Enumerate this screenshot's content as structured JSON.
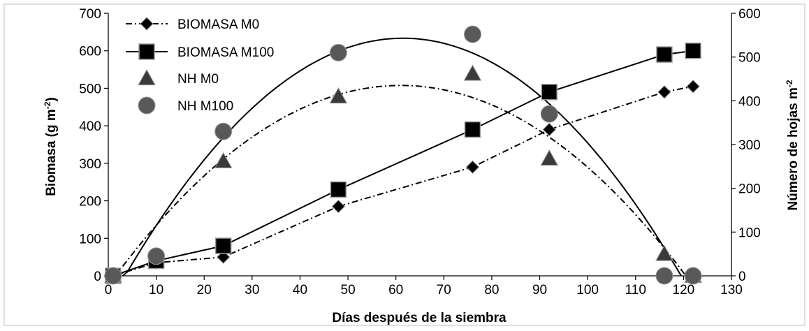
{
  "chart_data": {
    "type": "scatter",
    "xlabel": "Días después de la siembra",
    "ylabel": "Biomasa (g m",
    "ylabel_sup": "-2",
    "ylabel_end": ")",
    "y2label": "Número de hojas m",
    "y2label_sup": "-2",
    "xlim": [
      0,
      130
    ],
    "ylim": [
      0,
      700
    ],
    "y2lim": [
      0,
      600
    ],
    "xticks": [
      "0",
      "10",
      "20",
      "30",
      "40",
      "50",
      "60",
      "70",
      "80",
      "90",
      "100",
      "110",
      "120",
      "130"
    ],
    "yticks": [
      "0",
      "100",
      "200",
      "300",
      "400",
      "500",
      "600",
      "700"
    ],
    "y2ticks": [
      "0",
      "100",
      "200",
      "300",
      "400",
      "500",
      "600"
    ],
    "grid": false,
    "legend_position": "top-left",
    "series": [
      {
        "name": "BIOMASA M0",
        "axis": "left",
        "marker": "diamond",
        "line": "dash-dot",
        "color": "#000000",
        "x": [
          1,
          10,
          24,
          48,
          76,
          92,
          116,
          122
        ],
        "y": [
          0,
          35,
          50,
          185,
          290,
          390,
          490,
          505
        ]
      },
      {
        "name": "BIOMASA M100",
        "axis": "left",
        "marker": "square",
        "line": "solid",
        "color": "#000000",
        "x": [
          1,
          10,
          24,
          48,
          76,
          92,
          116,
          122
        ],
        "y": [
          0,
          40,
          80,
          230,
          390,
          490,
          590,
          600
        ]
      },
      {
        "name": "NH M0",
        "axis": "right",
        "marker": "triangle",
        "line": "none",
        "color": "#3a3a3a",
        "x": [
          1,
          24,
          48,
          76,
          92,
          116,
          122
        ],
        "y": [
          0,
          262,
          410,
          462,
          268,
          50,
          0
        ]
      },
      {
        "name": "NH M100",
        "axis": "right",
        "marker": "circle",
        "line": "none",
        "color": "#595959",
        "x": [
          1,
          10,
          24,
          48,
          76,
          92,
          116,
          122
        ],
        "y": [
          0,
          45,
          330,
          510,
          552,
          370,
          0,
          0
        ]
      }
    ],
    "trendlines": [
      {
        "name": "NH M0 trend",
        "axis": "right",
        "line": "dash-dot",
        "color": "#000000",
        "x_range": [
          3,
          120.5
        ],
        "vertex_x": 61,
        "vertex_y": 435
      },
      {
        "name": "NH M100 trend",
        "axis": "right",
        "line": "solid",
        "color": "#000000",
        "x_range": [
          3,
          119.5
        ],
        "vertex_x": 61.5,
        "vertex_y": 543
      }
    ]
  }
}
